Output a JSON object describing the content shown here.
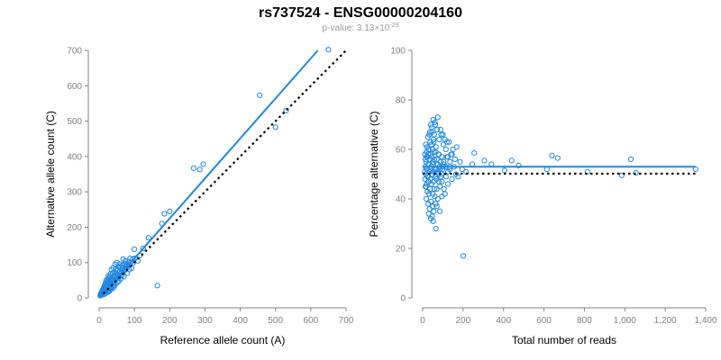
{
  "title": "rs737524 - ENSG00000204160",
  "pvalue_prefix": "p-value: 3.13×10",
  "pvalue_exponent": "-29",
  "colors": {
    "accent": "#1e88e5",
    "reference_line": "#000000",
    "axis": "#808080"
  },
  "chart_data": [
    {
      "type": "scatter",
      "xlabel": "Reference allele count (A)",
      "ylabel": "Alternative allele count (C)",
      "xlim": [
        0,
        700
      ],
      "ylim": [
        0,
        700
      ],
      "xticks": [
        0,
        100,
        200,
        300,
        400,
        500,
        600,
        700
      ],
      "yticks": [
        0,
        100,
        200,
        300,
        400,
        500,
        600,
        700
      ],
      "xtick_labels": [
        "0",
        "100",
        "200",
        "300",
        "400",
        "500",
        "600",
        "700"
      ],
      "ytick_labels": [
        "0",
        "100",
        "200",
        "300",
        "400",
        "500",
        "600",
        "700"
      ],
      "fit_line": {
        "x": [
          12,
          620
        ],
        "y": [
          12,
          700
        ]
      },
      "reference_line": {
        "x": [
          12,
          700
        ],
        "y": [
          12,
          700
        ]
      },
      "points": [
        [
          650,
          702
        ],
        [
          455,
          573
        ],
        [
          500,
          483
        ],
        [
          530,
          530
        ],
        [
          295,
          378
        ],
        [
          268,
          367
        ],
        [
          285,
          363
        ],
        [
          200,
          245
        ],
        [
          185,
          238
        ],
        [
          178,
          210
        ],
        [
          165,
          35
        ],
        [
          125,
          140
        ],
        [
          140,
          170
        ],
        [
          100,
          138
        ],
        [
          110,
          105
        ],
        [
          88,
          112
        ],
        [
          83,
          102
        ],
        [
          78,
          95
        ],
        [
          74,
          105
        ],
        [
          68,
          110
        ],
        [
          65,
          92
        ],
        [
          58,
          96
        ],
        [
          55,
          88
        ],
        [
          50,
          100
        ],
        [
          48,
          82
        ],
        [
          45,
          95
        ],
        [
          42,
          72
        ],
        [
          40,
          85
        ],
        [
          38,
          70
        ],
        [
          35,
          80
        ],
        [
          32,
          68
        ],
        [
          30,
          60
        ],
        [
          28,
          55
        ],
        [
          26,
          62
        ],
        [
          25,
          48
        ],
        [
          24,
          52
        ],
        [
          22,
          45
        ],
        [
          21,
          40
        ],
        [
          20,
          50
        ],
        [
          19,
          35
        ],
        [
          18,
          42
        ],
        [
          17,
          30
        ],
        [
          16,
          36
        ],
        [
          15,
          28
        ],
        [
          14,
          32
        ],
        [
          13,
          24
        ],
        [
          12,
          26
        ],
        [
          11,
          20
        ],
        [
          10,
          22
        ],
        [
          9,
          16
        ],
        [
          8,
          18
        ],
        [
          7,
          12
        ],
        [
          6,
          14
        ],
        [
          5,
          8
        ],
        [
          4,
          10
        ],
        [
          3,
          6
        ],
        [
          70,
          60
        ],
        [
          66,
          72
        ],
        [
          62,
          55
        ],
        [
          60,
          68
        ],
        [
          56,
          48
        ],
        [
          52,
          62
        ],
        [
          47,
          40
        ],
        [
          44,
          58
        ],
        [
          41,
          36
        ],
        [
          37,
          50
        ],
        [
          34,
          30
        ],
        [
          31,
          46
        ],
        [
          29,
          26
        ],
        [
          27,
          40
        ],
        [
          23,
          22
        ],
        [
          20,
          28
        ],
        [
          18,
          20
        ],
        [
          16,
          22
        ],
        [
          14,
          16
        ],
        [
          12,
          14
        ],
        [
          10,
          12
        ],
        [
          85,
          80
        ],
        [
          92,
          84
        ],
        [
          96,
          98
        ],
        [
          72,
          78
        ],
        [
          80,
          70
        ],
        [
          64,
          64
        ],
        [
          58,
          74
        ],
        [
          54,
          66
        ],
        [
          46,
          52
        ],
        [
          43,
          48
        ],
        [
          39,
          44
        ],
        [
          36,
          40
        ],
        [
          33,
          38
        ],
        [
          30,
          34
        ],
        [
          26,
          30
        ],
        [
          24,
          28
        ],
        [
          22,
          26
        ],
        [
          19,
          24
        ],
        [
          17,
          18
        ],
        [
          15,
          20
        ],
        [
          13,
          18
        ],
        [
          11,
          14
        ],
        [
          9,
          12
        ],
        [
          8,
          10
        ],
        [
          7,
          9
        ],
        [
          6,
          8
        ],
        [
          45,
          64
        ],
        [
          50,
          56
        ],
        [
          57,
          60
        ],
        [
          63,
          80
        ],
        [
          67,
          85
        ],
        [
          74,
          88
        ],
        [
          79,
          90
        ],
        [
          86,
          95
        ],
        [
          90,
          100
        ],
        [
          35,
          55
        ],
        [
          40,
          60
        ],
        [
          28,
          44
        ],
        [
          25,
          38
        ],
        [
          21,
          33
        ],
        [
          33,
          50
        ],
        [
          38,
          58
        ],
        [
          48,
          70
        ],
        [
          53,
          78
        ],
        [
          60,
          88
        ],
        [
          72,
          96
        ],
        [
          76,
          82
        ],
        [
          84,
          92
        ],
        [
          95,
          110
        ],
        [
          102,
          112
        ],
        [
          115,
          120
        ],
        [
          30,
          20
        ],
        [
          36,
          26
        ],
        [
          42,
          30
        ],
        [
          24,
          16
        ],
        [
          18,
          12
        ],
        [
          14,
          10
        ],
        [
          27,
          18
        ],
        [
          33,
          24
        ],
        [
          44,
          36
        ],
        [
          52,
          44
        ]
      ]
    },
    {
      "type": "scatter",
      "xlabel": "Total number of reads",
      "ylabel": "Percentage alternative (C)",
      "xlim": [
        0,
        1400
      ],
      "ylim": [
        0,
        100
      ],
      "xticks": [
        0,
        200,
        400,
        600,
        800,
        1000,
        1200,
        1400
      ],
      "yticks": [
        0,
        20,
        40,
        60,
        80,
        100
      ],
      "xtick_labels": [
        "0",
        "200",
        "400",
        "600",
        "800",
        "1,000",
        "1,200",
        "1,400"
      ],
      "ytick_labels": [
        "0",
        "20",
        "40",
        "60",
        "80",
        "100"
      ],
      "fit_line": {
        "x": [
          0,
          1350
        ],
        "y": [
          53,
          53
        ]
      },
      "reference_line": {
        "x": [
          0,
          1350
        ],
        "y": [
          50.2,
          50.2
        ]
      },
      "points": [
        [
          1350,
          52
        ],
        [
          1030,
          56
        ],
        [
          1055,
          50.5
        ],
        [
          985,
          49.5
        ],
        [
          815,
          51
        ],
        [
          668,
          56.5
        ],
        [
          640,
          57.5
        ],
        [
          615,
          52
        ],
        [
          475,
          53.5
        ],
        [
          440,
          55.5
        ],
        [
          405,
          51.5
        ],
        [
          340,
          54
        ],
        [
          305,
          55.5
        ],
        [
          245,
          54
        ],
        [
          255,
          58.5
        ],
        [
          215,
          51
        ],
        [
          200,
          17
        ],
        [
          195,
          52
        ],
        [
          185,
          55
        ],
        [
          175,
          49
        ],
        [
          168,
          61
        ],
        [
          160,
          56
        ],
        [
          150,
          60
        ],
        [
          145,
          48
        ],
        [
          140,
          58
        ],
        [
          135,
          53
        ],
        [
          130,
          63
        ],
        [
          125,
          46
        ],
        [
          120,
          57
        ],
        [
          115,
          60
        ],
        [
          110,
          42
        ],
        [
          105,
          54
        ],
        [
          102,
          62
        ],
        [
          98,
          52
        ],
        [
          95,
          47
        ],
        [
          92,
          66
        ],
        [
          88,
          55
        ],
        [
          85,
          45
        ],
        [
          82,
          64
        ],
        [
          80,
          58
        ],
        [
          78,
          50
        ],
        [
          75,
          40
        ],
        [
          72,
          68
        ],
        [
          70,
          56
        ],
        [
          68,
          48
        ],
        [
          66,
          61
        ],
        [
          64,
          38
        ],
        [
          62,
          70
        ],
        [
          60,
          52
        ],
        [
          58,
          44
        ],
        [
          57,
          66
        ],
        [
          56,
          59
        ],
        [
          55,
          35
        ],
        [
          54,
          64
        ],
        [
          53,
          47
        ],
        [
          52,
          72
        ],
        [
          51,
          55
        ],
        [
          50,
          42
        ],
        [
          49,
          60
        ],
        [
          48,
          50
        ],
        [
          47,
          33
        ],
        [
          46,
          67
        ],
        [
          45,
          57
        ],
        [
          44,
          46
        ],
        [
          43,
          62
        ],
        [
          42,
          53
        ],
        [
          41,
          39
        ],
        [
          40,
          70
        ],
        [
          39,
          58
        ],
        [
          38,
          48
        ],
        [
          37,
          63
        ],
        [
          36,
          44
        ],
        [
          35,
          56
        ],
        [
          34,
          36
        ],
        [
          33,
          66
        ],
        [
          32,
          51
        ],
        [
          31,
          42
        ],
        [
          30,
          60
        ],
        [
          29,
          47
        ],
        [
          28,
          54
        ],
        [
          27,
          38
        ],
        [
          26,
          65
        ],
        [
          25,
          49
        ],
        [
          24,
          57
        ],
        [
          23,
          43
        ],
        [
          22,
          61
        ],
        [
          21,
          52
        ],
        [
          20,
          46
        ],
        [
          19,
          59
        ],
        [
          18,
          40
        ],
        [
          17,
          55
        ],
        [
          16,
          50
        ],
        [
          15,
          62
        ],
        [
          14,
          45
        ],
        [
          13,
          53
        ],
        [
          12,
          48
        ],
        [
          11,
          58
        ],
        [
          10,
          51
        ],
        [
          65,
          28
        ],
        [
          52,
          31
        ],
        [
          75,
          73
        ],
        [
          60,
          71
        ],
        [
          88,
          68
        ],
        [
          100,
          66
        ],
        [
          110,
          64
        ],
        [
          120,
          63
        ],
        [
          70,
          37
        ],
        [
          85,
          35
        ],
        [
          95,
          41
        ],
        [
          105,
          44
        ],
        [
          115,
          49
        ],
        [
          125,
          51
        ],
        [
          135,
          55
        ],
        [
          145,
          58
        ],
        [
          155,
          53
        ],
        [
          165,
          50
        ],
        [
          35,
          67
        ],
        [
          45,
          69
        ],
        [
          55,
          63
        ],
        [
          65,
          59
        ],
        [
          75,
          54
        ],
        [
          85,
          52
        ],
        [
          95,
          57
        ],
        [
          30,
          34
        ],
        [
          40,
          32
        ],
        [
          50,
          37
        ],
        [
          60,
          41
        ],
        [
          70,
          44
        ],
        [
          80,
          47
        ],
        [
          90,
          49
        ],
        [
          100,
          53
        ],
        [
          38,
          52
        ],
        [
          48,
          54
        ],
        [
          58,
          56
        ],
        [
          68,
          52
        ],
        [
          78,
          58
        ],
        [
          28,
          58
        ],
        [
          24,
          49
        ],
        [
          20,
          57
        ],
        [
          17,
          45
        ],
        [
          14,
          56
        ],
        [
          44,
          50
        ],
        [
          54,
          51
        ],
        [
          64,
          49
        ],
        [
          74,
          51
        ],
        [
          84,
          53
        ],
        [
          94,
          50
        ],
        [
          104,
          55
        ],
        [
          114,
          53
        ],
        [
          124,
          57
        ],
        [
          134,
          52
        ]
      ]
    }
  ]
}
